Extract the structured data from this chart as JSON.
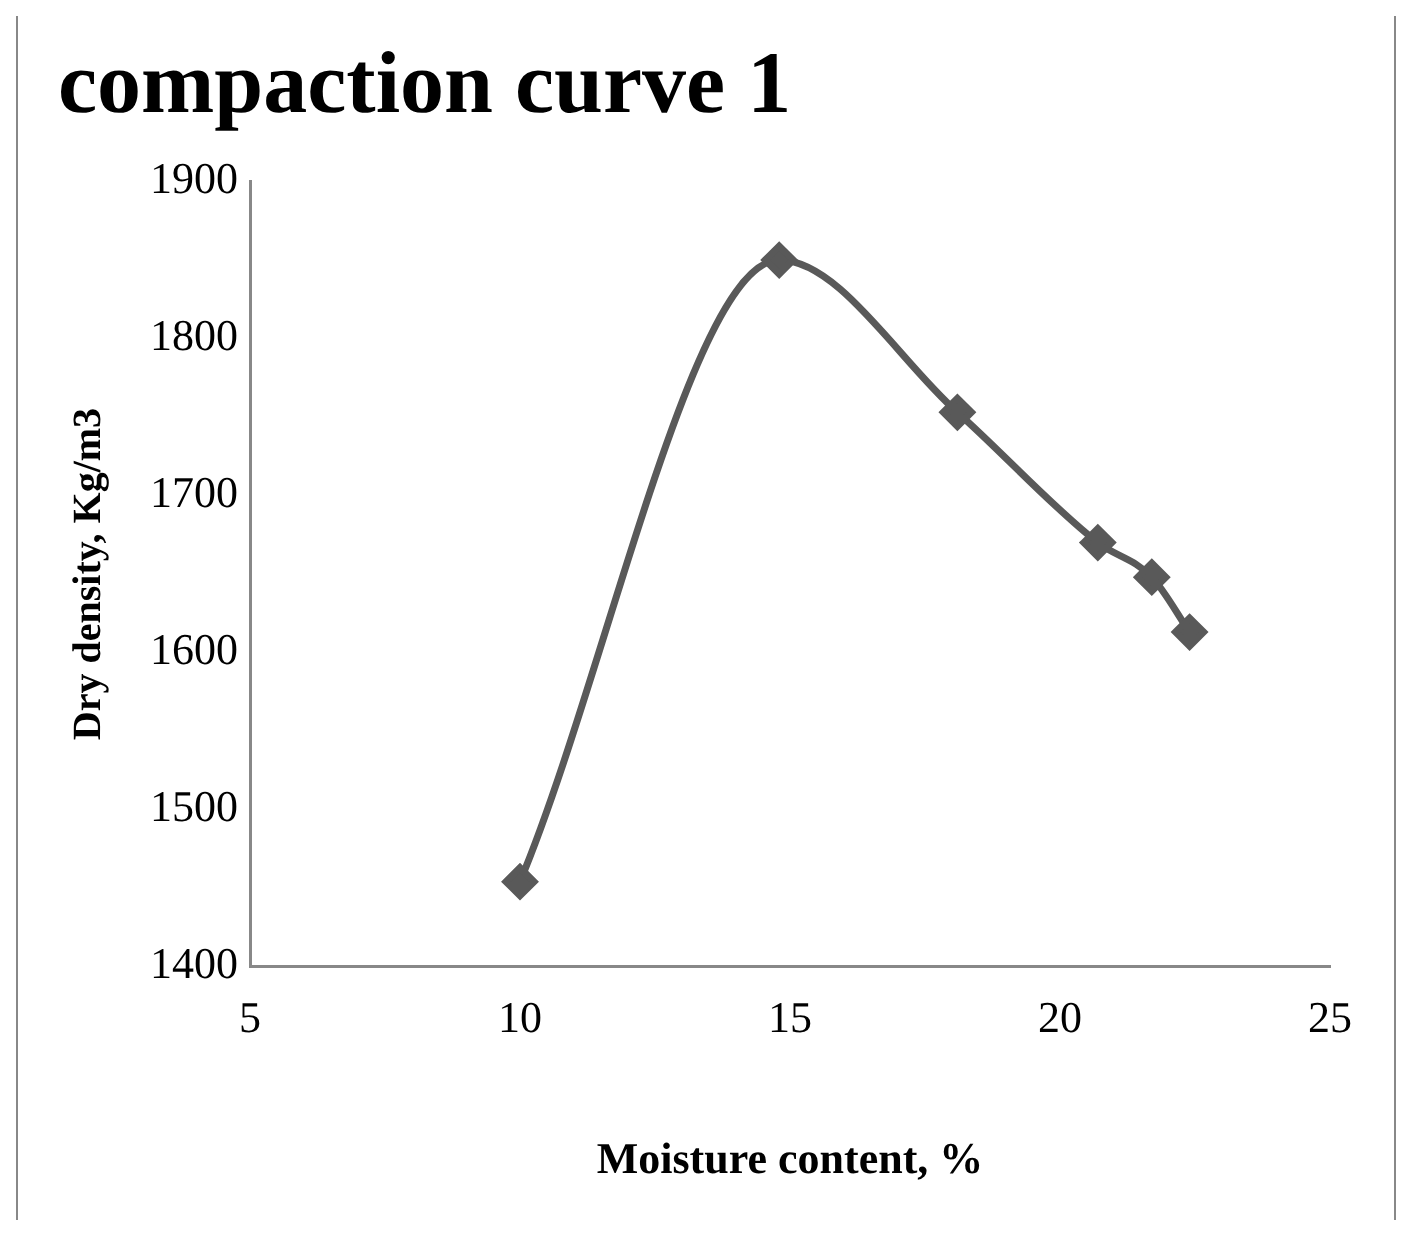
{
  "chart_data": {
    "type": "line",
    "title": "compaction curve 1",
    "xlabel": "Moisture content, %",
    "ylabel": "Dry density, Kg/m3",
    "x": [
      10.0,
      14.8,
      18.1,
      20.7,
      21.7,
      22.4
    ],
    "series": [
      {
        "color": "#595959",
        "values": [
          1454,
          1850,
          1753,
          1670,
          1648,
          1613
        ]
      }
    ],
    "xlim": [
      5,
      25
    ],
    "xticks": [
      5,
      10,
      15,
      20,
      25
    ],
    "ylim": [
      1400,
      1900
    ],
    "yticks": [
      1400,
      1500,
      1600,
      1700,
      1800,
      1900
    ],
    "grid": false,
    "legend": false,
    "marker": "diamond",
    "line_style": "solid"
  }
}
